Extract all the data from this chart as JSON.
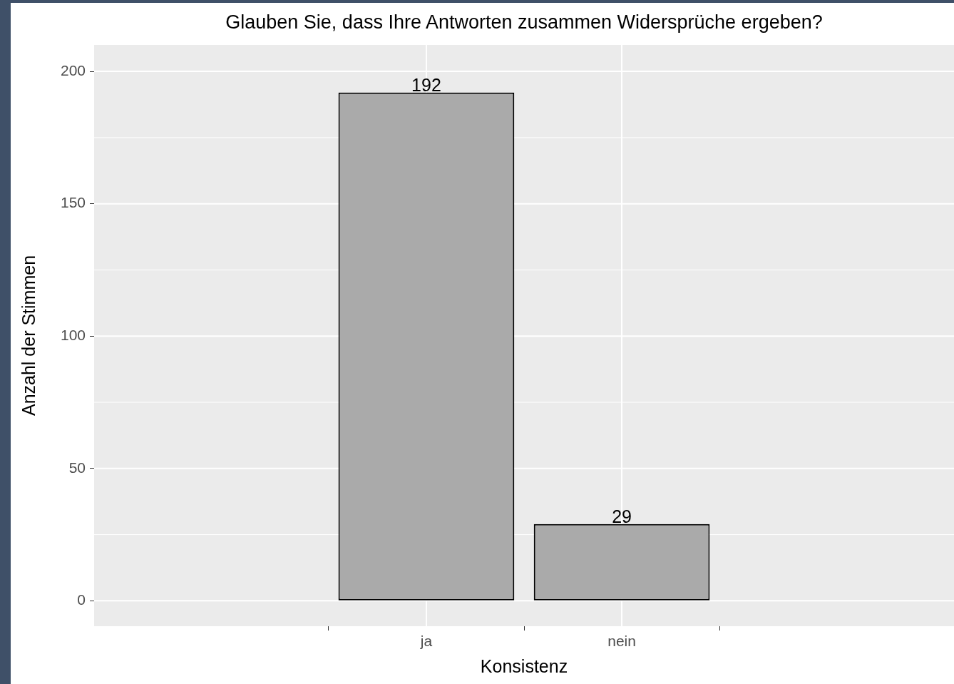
{
  "chart_data": {
    "type": "bar",
    "title": "Glauben Sie, dass Ihre Antworten zusammen Widersprüche ergeben?",
    "xlabel": "Konsistenz",
    "ylabel": "Anzahl der Stimmen",
    "categories": [
      "ja",
      "nein"
    ],
    "values": [
      192,
      29
    ],
    "color": "#aaaaaa",
    "ylim": [
      -9.6,
      210
    ],
    "yticks": [
      0,
      50,
      100,
      150,
      200
    ],
    "grid": true,
    "data_labels": true,
    "legend": false
  }
}
